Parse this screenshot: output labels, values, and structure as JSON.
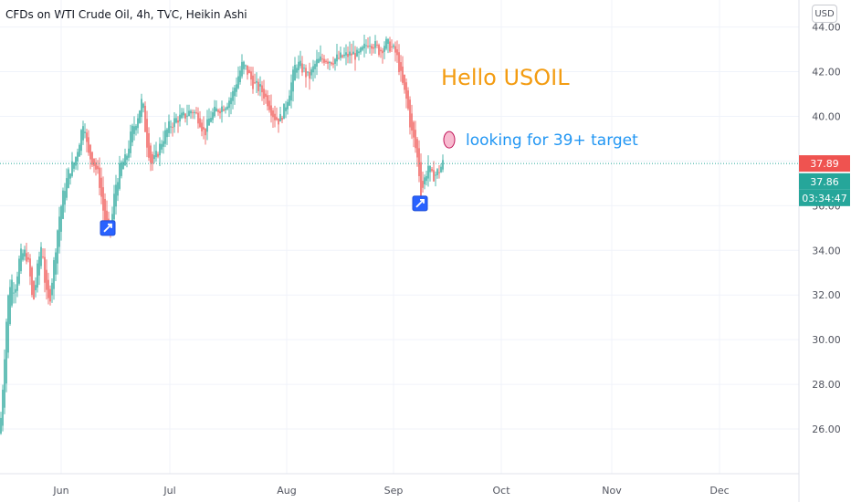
{
  "header": {
    "title": "CFDs on WTI Crude Oil, 4h, TVC, Heikin Ashi",
    "currency_button": "USD"
  },
  "chart_data": {
    "type": "candlestick",
    "ylim": [
      24.0,
      44.8
    ],
    "y_ticks": [
      26.0,
      28.0,
      30.0,
      32.0,
      34.0,
      36.0,
      38.0,
      40.0,
      42.0,
      44.0
    ],
    "y_tick_labels": [
      "26.00",
      "28.00",
      "30.00",
      "32.00",
      "34.00",
      "36.00",
      "38.00",
      "40.00",
      "42.00",
      "44.00"
    ],
    "x_ticks": [
      "Jun",
      "Jul",
      "Aug",
      "Sep",
      "Oct",
      "Nov",
      "Dec"
    ],
    "grid": true,
    "colors": {
      "up": "#26a69a",
      "down": "#ef5350"
    },
    "series_path": [
      {
        "x": 0,
        "y": 25.8
      },
      {
        "x": 4,
        "y": 28.6
      },
      {
        "x": 8,
        "y": 31.6
      },
      {
        "x": 12,
        "y": 32.8
      },
      {
        "x": 16,
        "y": 32.2
      },
      {
        "x": 22,
        "y": 33.8
      },
      {
        "x": 28,
        "y": 33.9
      },
      {
        "x": 32,
        "y": 33.2
      },
      {
        "x": 36,
        "y": 31.5
      },
      {
        "x": 42,
        "y": 33.5
      },
      {
        "x": 46,
        "y": 34.4
      },
      {
        "x": 50,
        "y": 32.1
      },
      {
        "x": 54,
        "y": 31.6
      },
      {
        "x": 60,
        "y": 33.8
      },
      {
        "x": 64,
        "y": 35.3
      },
      {
        "x": 70,
        "y": 36.7
      },
      {
        "x": 76,
        "y": 37.6
      },
      {
        "x": 82,
        "y": 38.0
      },
      {
        "x": 88,
        "y": 39.1
      },
      {
        "x": 92,
        "y": 40.0
      },
      {
        "x": 96,
        "y": 38.3
      },
      {
        "x": 102,
        "y": 38.0
      },
      {
        "x": 108,
        "y": 37.3
      },
      {
        "x": 114,
        "y": 35.5
      },
      {
        "x": 118,
        "y": 34.7
      },
      {
        "x": 122,
        "y": 35.2
      },
      {
        "x": 126,
        "y": 36.8
      },
      {
        "x": 132,
        "y": 37.8
      },
      {
        "x": 138,
        "y": 38.1
      },
      {
        "x": 144,
        "y": 39.3
      },
      {
        "x": 150,
        "y": 39.9
      },
      {
        "x": 156,
        "y": 40.8
      },
      {
        "x": 160,
        "y": 39.0
      },
      {
        "x": 166,
        "y": 37.8
      },
      {
        "x": 172,
        "y": 38.3
      },
      {
        "x": 178,
        "y": 39.0
      },
      {
        "x": 186,
        "y": 39.6
      },
      {
        "x": 194,
        "y": 39.9
      },
      {
        "x": 202,
        "y": 40.0
      },
      {
        "x": 210,
        "y": 40.3
      },
      {
        "x": 218,
        "y": 39.9
      },
      {
        "x": 224,
        "y": 39.2
      },
      {
        "x": 230,
        "y": 40.0
      },
      {
        "x": 238,
        "y": 40.3
      },
      {
        "x": 246,
        "y": 40.5
      },
      {
        "x": 254,
        "y": 40.9
      },
      {
        "x": 260,
        "y": 41.7
      },
      {
        "x": 266,
        "y": 42.4
      },
      {
        "x": 272,
        "y": 41.9
      },
      {
        "x": 278,
        "y": 41.4
      },
      {
        "x": 286,
        "y": 41.2
      },
      {
        "x": 294,
        "y": 40.6
      },
      {
        "x": 300,
        "y": 40.0
      },
      {
        "x": 306,
        "y": 39.8
      },
      {
        "x": 312,
        "y": 40.4
      },
      {
        "x": 318,
        "y": 41.3
      },
      {
        "x": 324,
        "y": 42.4
      },
      {
        "x": 330,
        "y": 42.2
      },
      {
        "x": 338,
        "y": 41.7
      },
      {
        "x": 346,
        "y": 42.4
      },
      {
        "x": 354,
        "y": 42.6
      },
      {
        "x": 362,
        "y": 42.5
      },
      {
        "x": 370,
        "y": 42.6
      },
      {
        "x": 378,
        "y": 42.7
      },
      {
        "x": 386,
        "y": 42.8
      },
      {
        "x": 392,
        "y": 42.7
      },
      {
        "x": 398,
        "y": 43.0
      },
      {
        "x": 404,
        "y": 43.4
      },
      {
        "x": 410,
        "y": 43.2
      },
      {
        "x": 416,
        "y": 42.9
      },
      {
        "x": 422,
        "y": 43.3
      },
      {
        "x": 428,
        "y": 43.1
      },
      {
        "x": 434,
        "y": 42.8
      },
      {
        "x": 438,
        "y": 42.0
      },
      {
        "x": 442,
        "y": 41.2
      },
      {
        "x": 446,
        "y": 40.6
      },
      {
        "x": 450,
        "y": 39.4
      },
      {
        "x": 454,
        "y": 38.8
      },
      {
        "x": 458,
        "y": 37.9
      },
      {
        "x": 461,
        "y": 36.5
      },
      {
        "x": 465,
        "y": 37.2
      },
      {
        "x": 469,
        "y": 37.8
      },
      {
        "x": 473,
        "y": 37.3
      },
      {
        "x": 477,
        "y": 37.4
      },
      {
        "x": 481,
        "y": 37.6
      },
      {
        "x": 485,
        "y": 37.9
      }
    ],
    "annotations": {
      "hello": {
        "text": "Hello USOIL",
        "color": "#f39c12"
      },
      "looking": {
        "text": "looking for 39+ target",
        "color": "#2196f3"
      },
      "markers": [
        {
          "name": "trade-idea-marker-jun",
          "x": 118,
          "y": 35.0
        },
        {
          "name": "trade-idea-marker-sep",
          "x": 460,
          "y": 36.1
        }
      ]
    },
    "price_badges": [
      {
        "label": "37.89",
        "value": 37.89,
        "color": "#ef5350"
      },
      {
        "label": "37.86",
        "value": 37.86,
        "color": "#26a69a"
      },
      {
        "label": "03:34:47",
        "value": 37.27,
        "color": "#26a69a"
      }
    ]
  }
}
